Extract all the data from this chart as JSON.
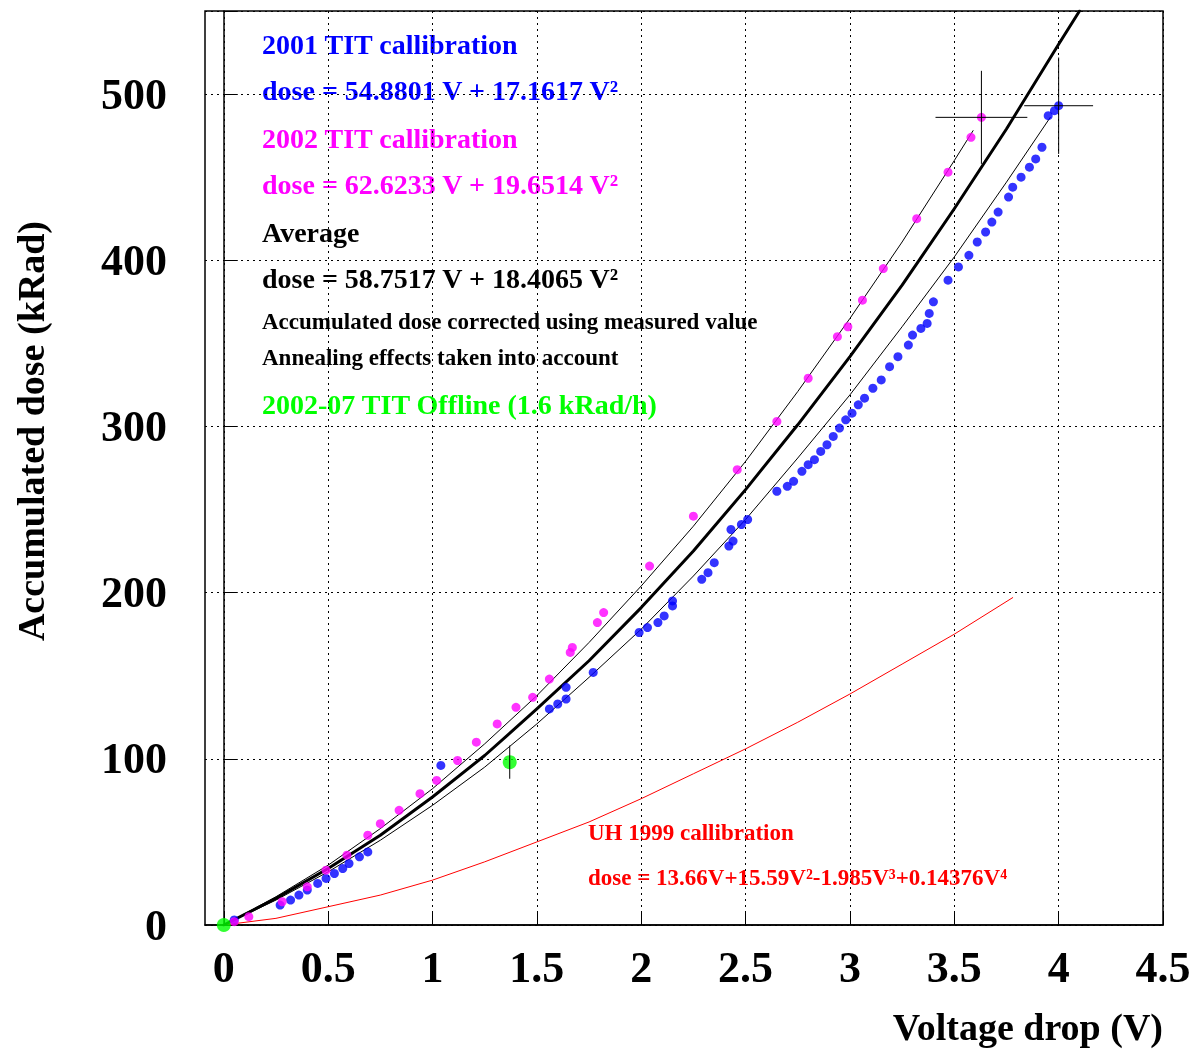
{
  "chart_data": {
    "type": "scatter",
    "xlabel": "Voltage drop (V)",
    "ylabel": "Accumulated dose (kRad)",
    "xlim": [
      -0.09,
      4.5
    ],
    "xticks": [
      0,
      0.5,
      1,
      1.5,
      2,
      2.5,
      3,
      3.5,
      4,
      4.5
    ],
    "ylim": [
      0,
      550
    ],
    "yticks": [
      0,
      100,
      200,
      300,
      400,
      500
    ],
    "grid": true,
    "legend": false,
    "annotations": [
      "dose = 54.8801 V + 17.1617 V²",
      "dose = 62.6233 V + 19.6514 V²",
      "dose = 58.7517 V + 18.4065 V²",
      "dose = 13.66V+15.59V²-1.985V³+0.14376V⁴",
      "Accumulated dose corrected using measured value",
      "Annealing effects taken into account"
    ],
    "series": [
      {
        "name": "2001 TIT callibration",
        "color": "#0000ff",
        "marker": "circle",
        "x": [
          0.05,
          0.27,
          0.32,
          0.36,
          0.4,
          0.45,
          0.49,
          0.53,
          0.57,
          0.6,
          0.65,
          0.69,
          1.04,
          1.56,
          1.6,
          1.64,
          1.64,
          1.77,
          1.99,
          2.03,
          2.08,
          2.11,
          2.15,
          2.15,
          2.29,
          2.32,
          2.35,
          2.42,
          2.44,
          2.43,
          2.48,
          2.51,
          2.65,
          2.7,
          2.73,
          2.77,
          2.8,
          2.83,
          2.86,
          2.89,
          2.92,
          2.95,
          2.98,
          3.01,
          3.04,
          3.07,
          3.11,
          3.15,
          3.19,
          3.23,
          3.28,
          3.3,
          3.34,
          3.37,
          3.38,
          3.4,
          3.47,
          3.52,
          3.57,
          3.61,
          3.65,
          3.68,
          3.71,
          3.76,
          3.78,
          3.82,
          3.86,
          3.89,
          3.92,
          3.95,
          3.98,
          4.0
        ],
        "values": [
          3,
          12,
          15,
          18,
          21,
          25,
          28,
          31,
          34,
          37,
          41,
          44,
          96,
          130,
          133,
          136,
          143,
          152,
          176,
          179,
          182,
          186,
          192,
          195,
          208,
          212,
          218,
          228,
          231,
          238,
          241,
          244,
          261,
          264,
          267,
          273,
          277,
          280,
          285,
          289,
          294,
          299,
          304,
          308,
          313,
          317,
          323,
          328,
          336,
          342,
          349,
          355,
          359,
          362,
          368,
          375,
          388,
          396,
          403,
          411,
          417,
          423,
          429,
          438,
          444,
          450,
          456,
          461,
          468,
          487,
          490,
          493
        ],
        "errors": [
          null,
          null,
          null,
          null,
          null,
          null,
          null,
          null,
          null,
          null,
          null,
          null,
          null,
          null,
          null,
          null,
          null,
          null,
          null,
          null,
          null,
          null,
          null,
          null,
          null,
          null,
          null,
          null,
          null,
          null,
          null,
          null,
          null,
          null,
          null,
          null,
          null,
          null,
          null,
          null,
          null,
          null,
          null,
          null,
          null,
          null,
          null,
          null,
          null,
          null,
          null,
          null,
          null,
          null,
          null,
          null,
          null,
          null,
          null,
          null,
          null,
          null,
          null,
          null,
          null,
          null,
          null,
          null,
          null,
          null,
          null,
          29
        ],
        "xerrors": [
          null,
          null,
          null,
          null,
          null,
          null,
          null,
          null,
          null,
          null,
          null,
          null,
          null,
          null,
          null,
          null,
          null,
          null,
          null,
          null,
          null,
          null,
          null,
          null,
          null,
          null,
          null,
          null,
          null,
          null,
          null,
          null,
          null,
          null,
          null,
          null,
          null,
          null,
          null,
          null,
          null,
          null,
          null,
          null,
          null,
          null,
          null,
          null,
          null,
          null,
          null,
          null,
          null,
          null,
          null,
          null,
          null,
          null,
          null,
          null,
          null,
          null,
          null,
          null,
          null,
          null,
          null,
          null,
          null,
          null,
          null,
          0.165
        ]
      },
      {
        "name": "2002 TIT callibration",
        "color": "#ff00ff",
        "marker": "circle",
        "x": [
          0.05,
          0.12,
          0.28,
          0.4,
          0.49,
          0.59,
          0.69,
          0.75,
          0.84,
          0.94,
          1.02,
          1.12,
          1.21,
          1.31,
          1.4,
          1.48,
          1.56,
          1.66,
          1.67,
          1.79,
          1.82,
          2.04,
          2.25,
          2.46,
          2.65,
          2.8,
          2.94,
          2.99,
          3.06,
          3.16,
          3.32,
          3.47,
          3.58,
          3.63
        ],
        "values": [
          2,
          5,
          14,
          23,
          33,
          42,
          54,
          61,
          69,
          79,
          87,
          99,
          110,
          121,
          131,
          137,
          148,
          164,
          167,
          182,
          188,
          216,
          246,
          274,
          303,
          329,
          354,
          360,
          376,
          395,
          425,
          453,
          474,
          486
        ],
        "errors": [
          null,
          null,
          null,
          null,
          null,
          null,
          null,
          null,
          null,
          null,
          null,
          null,
          null,
          null,
          null,
          null,
          null,
          null,
          null,
          null,
          null,
          null,
          null,
          null,
          null,
          null,
          null,
          null,
          null,
          null,
          null,
          null,
          null,
          28
        ],
        "xerrors": [
          null,
          null,
          null,
          null,
          null,
          null,
          null,
          null,
          null,
          null,
          null,
          null,
          null,
          null,
          null,
          null,
          null,
          null,
          null,
          null,
          null,
          null,
          null,
          null,
          null,
          null,
          null,
          null,
          null,
          null,
          null,
          null,
          null,
          0.22
        ]
      },
      {
        "type": "line",
        "name": "Average",
        "color": "#000000",
        "marker": "none",
        "x": [
          0,
          0.25,
          0.5,
          0.75,
          1,
          1.25,
          1.5,
          1.75,
          2,
          2.25,
          2.5,
          2.75,
          3,
          3.25,
          3.5,
          3.75,
          4,
          4.1
        ],
        "values": [
          0,
          16,
          34,
          54,
          77,
          102,
          130,
          159,
          191,
          225,
          262,
          301,
          342,
          385,
          431,
          479,
          530,
          550
        ]
      },
      {
        "type": "line",
        "color": "#000000",
        "marker": "none",
        "x": [
          0,
          0.25,
          0.5,
          0.75,
          1,
          1.25,
          1.5,
          1.75,
          2,
          2.25,
          2.5,
          2.75,
          3,
          3.25,
          3.5,
          3.75,
          3.96
        ],
        "values": [
          0,
          15,
          32,
          51,
          72,
          95,
          121,
          149,
          178,
          210,
          244,
          281,
          319,
          360,
          402,
          447,
          486
        ]
      },
      {
        "type": "line",
        "color": "#000000",
        "marker": "none",
        "x": [
          0,
          0.25,
          0.5,
          0.75,
          1,
          1.25,
          1.5,
          1.75,
          2,
          2.25,
          2.5,
          2.75,
          3,
          3.25,
          3.5,
          3.59
        ],
        "values": [
          0,
          17,
          36,
          58,
          82,
          109,
          138,
          170,
          204,
          240,
          279,
          321,
          365,
          411,
          460,
          478
        ]
      },
      {
        "type": "line",
        "name": "UH 1999 callibration",
        "color": "#ff0000",
        "marker": "none",
        "x": [
          0,
          0.25,
          0.5,
          0.75,
          1,
          1.25,
          1.5,
          1.75,
          2,
          2.25,
          2.5,
          2.75,
          3,
          3.25,
          3.5,
          3.78
        ],
        "values": [
          0,
          4,
          11,
          18,
          27,
          38,
          50,
          62,
          76,
          91,
          106,
          122,
          139,
          157,
          175,
          197
        ]
      },
      {
        "name": "2002-07 TIT Offline (1.6 kRad/h)",
        "color": "#00ff00",
        "marker": "circle",
        "x": [
          0,
          1.37
        ],
        "values": [
          0,
          98
        ],
        "errors": [
          null,
          10
        ]
      }
    ]
  }
}
